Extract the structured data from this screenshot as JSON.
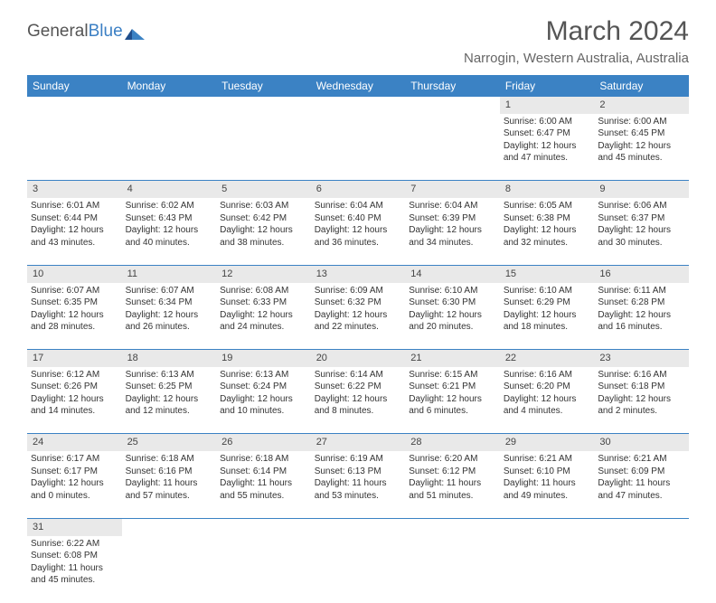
{
  "brand": {
    "part1": "General",
    "part2": "Blue"
  },
  "title": "March 2024",
  "location": "Narrogin, Western Australia, Australia",
  "colors": {
    "header_bg": "#3b82c4",
    "daynum_bg": "#e9e9e9",
    "rule": "#3b82c4"
  },
  "weekdays": [
    "Sunday",
    "Monday",
    "Tuesday",
    "Wednesday",
    "Thursday",
    "Friday",
    "Saturday"
  ],
  "weeks": [
    [
      null,
      null,
      null,
      null,
      null,
      {
        "n": "1",
        "sunrise": "Sunrise: 6:00 AM",
        "sunset": "Sunset: 6:47 PM",
        "daylight": "Daylight: 12 hours and 47 minutes."
      },
      {
        "n": "2",
        "sunrise": "Sunrise: 6:00 AM",
        "sunset": "Sunset: 6:45 PM",
        "daylight": "Daylight: 12 hours and 45 minutes."
      }
    ],
    [
      {
        "n": "3",
        "sunrise": "Sunrise: 6:01 AM",
        "sunset": "Sunset: 6:44 PM",
        "daylight": "Daylight: 12 hours and 43 minutes."
      },
      {
        "n": "4",
        "sunrise": "Sunrise: 6:02 AM",
        "sunset": "Sunset: 6:43 PM",
        "daylight": "Daylight: 12 hours and 40 minutes."
      },
      {
        "n": "5",
        "sunrise": "Sunrise: 6:03 AM",
        "sunset": "Sunset: 6:42 PM",
        "daylight": "Daylight: 12 hours and 38 minutes."
      },
      {
        "n": "6",
        "sunrise": "Sunrise: 6:04 AM",
        "sunset": "Sunset: 6:40 PM",
        "daylight": "Daylight: 12 hours and 36 minutes."
      },
      {
        "n": "7",
        "sunrise": "Sunrise: 6:04 AM",
        "sunset": "Sunset: 6:39 PM",
        "daylight": "Daylight: 12 hours and 34 minutes."
      },
      {
        "n": "8",
        "sunrise": "Sunrise: 6:05 AM",
        "sunset": "Sunset: 6:38 PM",
        "daylight": "Daylight: 12 hours and 32 minutes."
      },
      {
        "n": "9",
        "sunrise": "Sunrise: 6:06 AM",
        "sunset": "Sunset: 6:37 PM",
        "daylight": "Daylight: 12 hours and 30 minutes."
      }
    ],
    [
      {
        "n": "10",
        "sunrise": "Sunrise: 6:07 AM",
        "sunset": "Sunset: 6:35 PM",
        "daylight": "Daylight: 12 hours and 28 minutes."
      },
      {
        "n": "11",
        "sunrise": "Sunrise: 6:07 AM",
        "sunset": "Sunset: 6:34 PM",
        "daylight": "Daylight: 12 hours and 26 minutes."
      },
      {
        "n": "12",
        "sunrise": "Sunrise: 6:08 AM",
        "sunset": "Sunset: 6:33 PM",
        "daylight": "Daylight: 12 hours and 24 minutes."
      },
      {
        "n": "13",
        "sunrise": "Sunrise: 6:09 AM",
        "sunset": "Sunset: 6:32 PM",
        "daylight": "Daylight: 12 hours and 22 minutes."
      },
      {
        "n": "14",
        "sunrise": "Sunrise: 6:10 AM",
        "sunset": "Sunset: 6:30 PM",
        "daylight": "Daylight: 12 hours and 20 minutes."
      },
      {
        "n": "15",
        "sunrise": "Sunrise: 6:10 AM",
        "sunset": "Sunset: 6:29 PM",
        "daylight": "Daylight: 12 hours and 18 minutes."
      },
      {
        "n": "16",
        "sunrise": "Sunrise: 6:11 AM",
        "sunset": "Sunset: 6:28 PM",
        "daylight": "Daylight: 12 hours and 16 minutes."
      }
    ],
    [
      {
        "n": "17",
        "sunrise": "Sunrise: 6:12 AM",
        "sunset": "Sunset: 6:26 PM",
        "daylight": "Daylight: 12 hours and 14 minutes."
      },
      {
        "n": "18",
        "sunrise": "Sunrise: 6:13 AM",
        "sunset": "Sunset: 6:25 PM",
        "daylight": "Daylight: 12 hours and 12 minutes."
      },
      {
        "n": "19",
        "sunrise": "Sunrise: 6:13 AM",
        "sunset": "Sunset: 6:24 PM",
        "daylight": "Daylight: 12 hours and 10 minutes."
      },
      {
        "n": "20",
        "sunrise": "Sunrise: 6:14 AM",
        "sunset": "Sunset: 6:22 PM",
        "daylight": "Daylight: 12 hours and 8 minutes."
      },
      {
        "n": "21",
        "sunrise": "Sunrise: 6:15 AM",
        "sunset": "Sunset: 6:21 PM",
        "daylight": "Daylight: 12 hours and 6 minutes."
      },
      {
        "n": "22",
        "sunrise": "Sunrise: 6:16 AM",
        "sunset": "Sunset: 6:20 PM",
        "daylight": "Daylight: 12 hours and 4 minutes."
      },
      {
        "n": "23",
        "sunrise": "Sunrise: 6:16 AM",
        "sunset": "Sunset: 6:18 PM",
        "daylight": "Daylight: 12 hours and 2 minutes."
      }
    ],
    [
      {
        "n": "24",
        "sunrise": "Sunrise: 6:17 AM",
        "sunset": "Sunset: 6:17 PM",
        "daylight": "Daylight: 12 hours and 0 minutes."
      },
      {
        "n": "25",
        "sunrise": "Sunrise: 6:18 AM",
        "sunset": "Sunset: 6:16 PM",
        "daylight": "Daylight: 11 hours and 57 minutes."
      },
      {
        "n": "26",
        "sunrise": "Sunrise: 6:18 AM",
        "sunset": "Sunset: 6:14 PM",
        "daylight": "Daylight: 11 hours and 55 minutes."
      },
      {
        "n": "27",
        "sunrise": "Sunrise: 6:19 AM",
        "sunset": "Sunset: 6:13 PM",
        "daylight": "Daylight: 11 hours and 53 minutes."
      },
      {
        "n": "28",
        "sunrise": "Sunrise: 6:20 AM",
        "sunset": "Sunset: 6:12 PM",
        "daylight": "Daylight: 11 hours and 51 minutes."
      },
      {
        "n": "29",
        "sunrise": "Sunrise: 6:21 AM",
        "sunset": "Sunset: 6:10 PM",
        "daylight": "Daylight: 11 hours and 49 minutes."
      },
      {
        "n": "30",
        "sunrise": "Sunrise: 6:21 AM",
        "sunset": "Sunset: 6:09 PM",
        "daylight": "Daylight: 11 hours and 47 minutes."
      }
    ],
    [
      {
        "n": "31",
        "sunrise": "Sunrise: 6:22 AM",
        "sunset": "Sunset: 6:08 PM",
        "daylight": "Daylight: 11 hours and 45 minutes."
      },
      null,
      null,
      null,
      null,
      null,
      null
    ]
  ]
}
